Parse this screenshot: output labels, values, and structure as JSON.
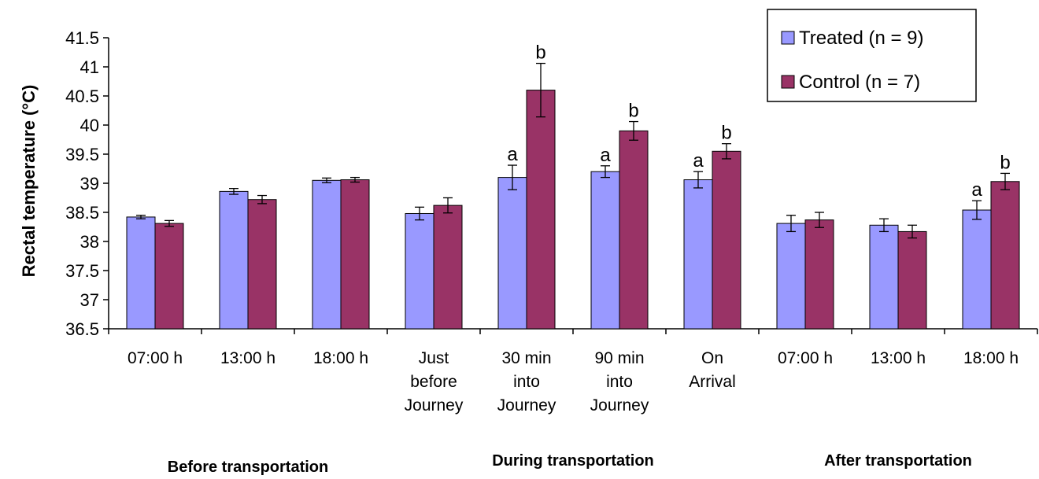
{
  "chart_data": {
    "type": "bar",
    "ylabel": "Rectal temperature (°C)",
    "ylim": [
      36.5,
      41.5
    ],
    "ytick_step": 0.5,
    "grid": false,
    "legend_placement": "top-right",
    "categories": [
      [
        "07:00 h"
      ],
      [
        "13:00 h"
      ],
      [
        "18:00 h"
      ],
      [
        "Just",
        "before",
        "Journey"
      ],
      [
        "30 min",
        "into",
        "Journey"
      ],
      [
        "90 min",
        "into",
        "Journey"
      ],
      [
        "On",
        "Arrival"
      ],
      [
        "07:00 h"
      ],
      [
        "13:00 h"
      ],
      [
        "18:00 h"
      ]
    ],
    "groups": [
      {
        "label": "Before transportation",
        "categories": [
          0,
          1,
          2
        ]
      },
      {
        "label": "During transportation",
        "categories": [
          3,
          4,
          5,
          6
        ]
      },
      {
        "label": "After transportation",
        "categories": [
          7,
          8,
          9
        ]
      }
    ],
    "series": [
      {
        "name": "Treated (n = 9)",
        "color": "#9999ff",
        "values": [
          38.42,
          38.86,
          39.05,
          38.48,
          39.1,
          39.2,
          39.06,
          38.31,
          38.28,
          38.54
        ],
        "errors": [
          0.03,
          0.05,
          0.04,
          0.11,
          0.21,
          0.1,
          0.14,
          0.14,
          0.11,
          0.16
        ],
        "sig_labels": [
          "",
          "",
          "",
          "",
          "a",
          "a",
          "a",
          "",
          "",
          "a"
        ]
      },
      {
        "name": "Control (n = 7)",
        "color": "#993366",
        "values": [
          38.31,
          38.72,
          39.06,
          38.62,
          40.6,
          39.9,
          39.55,
          38.37,
          38.17,
          39.03
        ],
        "errors": [
          0.05,
          0.07,
          0.04,
          0.13,
          0.46,
          0.16,
          0.13,
          0.13,
          0.11,
          0.14
        ],
        "sig_labels": [
          "",
          "",
          "",
          "",
          "b",
          "b",
          "b",
          "",
          "",
          "b"
        ]
      }
    ]
  }
}
